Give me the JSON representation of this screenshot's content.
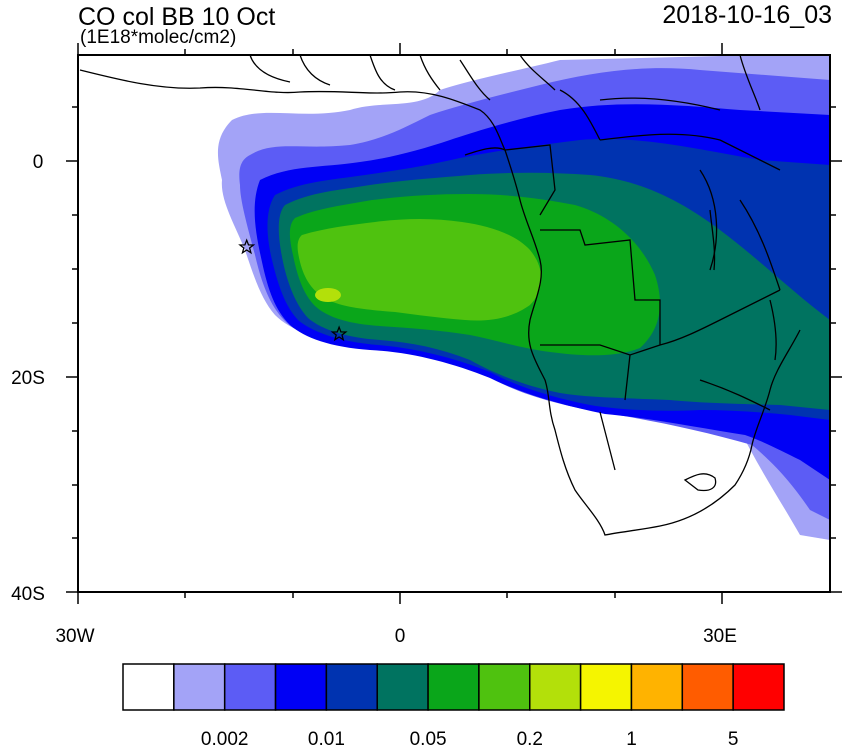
{
  "header": {
    "title": "CO col BB 10 Oct",
    "units": "(1E18*molec/cm2)",
    "datetime": "2018-10-16_03"
  },
  "map": {
    "lon_range": [
      -30,
      40
    ],
    "lat_range": [
      -40,
      10
    ],
    "x_tick_labels": [
      "30W",
      "0",
      "30E"
    ],
    "y_tick_labels": [
      "0",
      "20S",
      "40S"
    ],
    "markers": [
      {
        "type": "star-icon",
        "lon": -14.3,
        "lat": -7.9
      },
      {
        "type": "star-icon",
        "lon": -5.7,
        "lat": -16.0
      }
    ]
  },
  "colorbar": {
    "colors": [
      "#ffffff",
      "#a3a3f7",
      "#5c5cf5",
      "#0000f5",
      "#0033b0",
      "#007360",
      "#0aa61a",
      "#4fc20f",
      "#b3e00a",
      "#f5f500",
      "#ffb300",
      "#ff5c00",
      "#ff0000"
    ],
    "labels": [
      "0.002",
      "0.01",
      "0.05",
      "0.2",
      "1",
      "5"
    ]
  }
}
